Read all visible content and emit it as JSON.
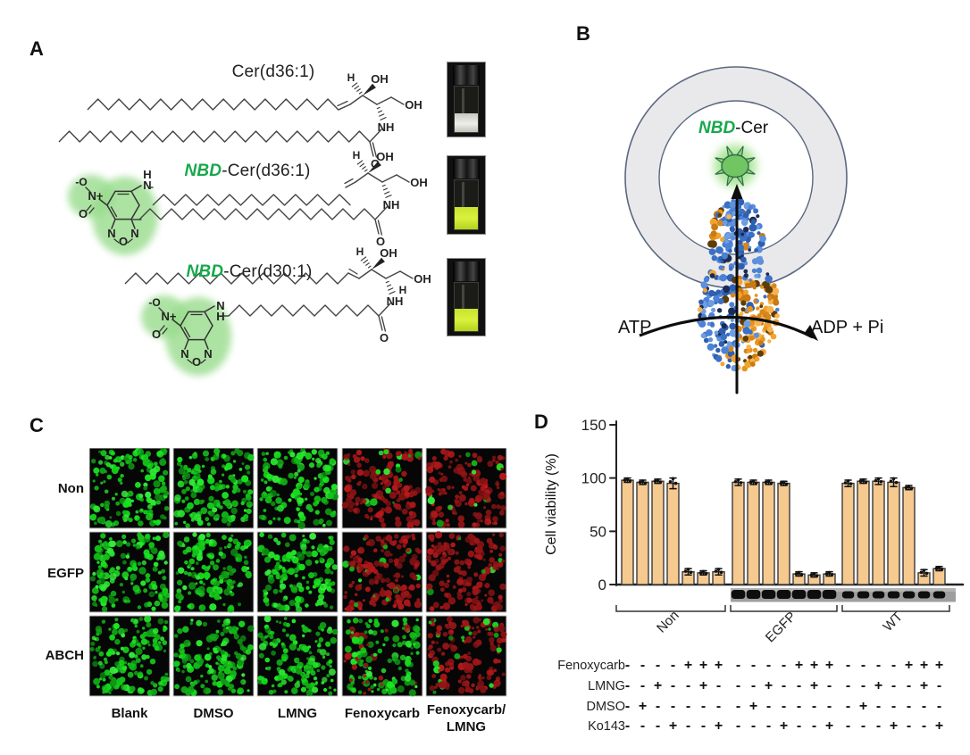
{
  "panel_labels": {
    "a": "A",
    "b": "B",
    "c": "C",
    "d": "D"
  },
  "colors": {
    "nbd_green_text": "#17A84B",
    "nbd_glow_green": "#98DC8C",
    "bar_fill": "#F6C98F",
    "micrograph_green": "#2DBE2D",
    "micrograph_red": "#C42020",
    "protein_blue": "#4F86D8",
    "protein_orange": "#F0A02A",
    "vial_liquid_yellow_green": "#CDE233",
    "liposome_gray": "#E9E9EB"
  },
  "panelA": {
    "molecules": [
      {
        "prefix": "",
        "name": "Cer(d36:1)",
        "head_labels": [
          "H",
          "OH",
          "OH",
          "NH",
          "O"
        ]
      },
      {
        "prefix": "NBD",
        "name": "-Cer(d36:1)",
        "nitro_labels": [
          "-O",
          "N+",
          "O"
        ],
        "furazan_labels": [
          "N",
          "O",
          "N"
        ],
        "link_labels": [
          "H",
          "N"
        ],
        "head_labels": [
          "H",
          "OH",
          "OH",
          "NH",
          "O"
        ]
      },
      {
        "prefix": "NBD",
        "name": "-Cer(d30:1)",
        "nitro_labels": [
          "-O",
          "N+",
          "O"
        ],
        "furazan_labels": [
          "N",
          "O",
          "N"
        ],
        "link_labels": [
          "N",
          "H"
        ],
        "head_labels": [
          "H",
          "OH",
          "OH",
          "H",
          "NH",
          "O"
        ]
      }
    ],
    "vial_contents": [
      "clear",
      "yellow-green fluorescent",
      "yellow-green fluorescent"
    ]
  },
  "panelB": {
    "cargo_prefix": "NBD",
    "cargo_suffix": "-Cer",
    "left_label": "ATP",
    "right_label": "ADP + Pi"
  },
  "panelC": {
    "row_labels": [
      "Non",
      "EGFP",
      "ABCH"
    ],
    "col_labels": [
      "Blank",
      "DMSO",
      "LMNG",
      "Fenoxycarb",
      "Fenoxycarb/\nLMNG"
    ],
    "cell_signal": [
      [
        "green",
        "green",
        "green",
        "red",
        "red"
      ],
      [
        "green",
        "green",
        "green",
        "red",
        "red"
      ],
      [
        "green",
        "green",
        "green",
        "green-few-red",
        "red-some-green"
      ]
    ]
  },
  "chart_data": {
    "type": "bar",
    "title": "",
    "ylabel": "Cell viability (%)",
    "yticks": [
      0,
      50,
      100,
      150
    ],
    "ylim": [
      0,
      150
    ],
    "legend": "none",
    "grid": false,
    "bar_color": "#F6C98F",
    "groups": [
      {
        "name": "Non",
        "values": [
          98,
          96,
          97,
          95,
          12,
          11,
          12
        ],
        "errors": [
          2,
          2,
          2,
          5,
          3,
          2,
          3
        ],
        "blot_bands": false
      },
      {
        "name": "EGFP",
        "values": [
          96,
          96,
          96,
          95,
          10,
          9,
          10
        ],
        "errors": [
          3,
          2,
          2,
          2,
          2,
          2,
          2
        ],
        "blot_bands": true
      },
      {
        "name": "WT",
        "values": [
          95,
          97,
          97,
          96,
          91,
          11,
          15
        ],
        "errors": [
          3,
          2,
          3,
          4,
          2,
          3,
          2
        ],
        "blot_bands": true
      }
    ],
    "treatments": [
      {
        "label": "Fenoxycarb",
        "symbols": [
          "-",
          "-",
          "-",
          "-",
          "+",
          "+",
          "+",
          "-",
          "-",
          "-",
          "-",
          "+",
          "+",
          "+",
          "-",
          "-",
          "-",
          "-",
          "+",
          "+",
          "+"
        ]
      },
      {
        "label": "LMNG",
        "symbols": [
          "-",
          "-",
          "+",
          "-",
          "-",
          "+",
          "-",
          "-",
          "-",
          "+",
          "-",
          "-",
          "+",
          "-",
          "-",
          "-",
          "+",
          "-",
          "-",
          "+",
          "-"
        ]
      },
      {
        "label": "DMSO",
        "symbols": [
          "-",
          "+",
          "-",
          "-",
          "-",
          "-",
          "-",
          "-",
          "+",
          "-",
          "-",
          "-",
          "-",
          "-",
          "-",
          "+",
          "-",
          "-",
          "-",
          "-",
          "-"
        ]
      },
      {
        "label": "Ko143",
        "symbols": [
          "-",
          "-",
          "-",
          "+",
          "-",
          "-",
          "+",
          "-",
          "-",
          "-",
          "+",
          "-",
          "-",
          "+",
          "-",
          "-",
          "-",
          "+",
          "-",
          "-",
          "+"
        ]
      }
    ]
  }
}
